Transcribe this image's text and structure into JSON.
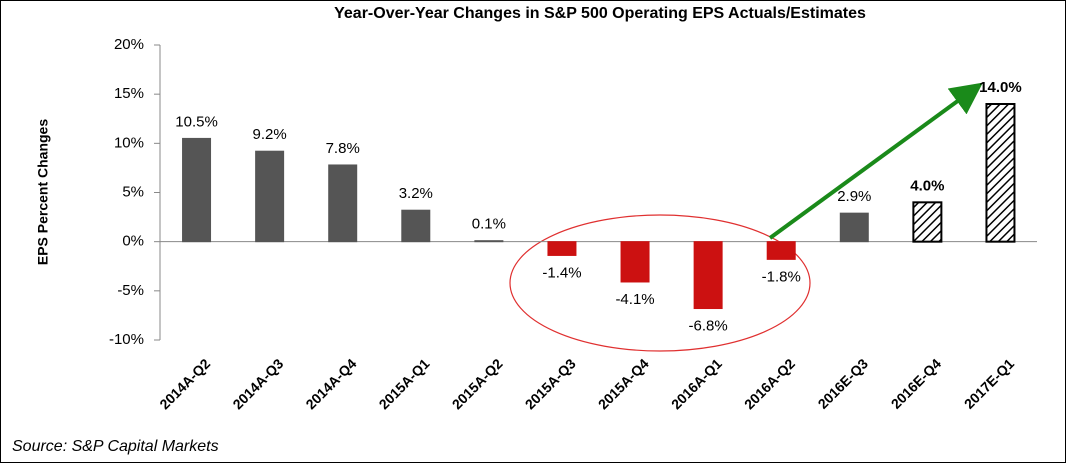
{
  "chart_data": {
    "type": "bar",
    "title": "Year-Over-Year Changes in S&P 500 Operating EPS Actuals/Estimates",
    "y_label": "EPS Percent Changes",
    "source": "Source: S&P Capital Markets",
    "categories": [
      "2014A-Q2",
      "2014A-Q3",
      "2014A-Q4",
      "2015A-Q1",
      "2015A-Q2",
      "2015A-Q3",
      "2015A-Q4",
      "2016A-Q1",
      "2016A-Q2",
      "2016E-Q3",
      "2016E-Q4",
      "2017E-Q1"
    ],
    "values": [
      10.5,
      9.2,
      7.8,
      3.2,
      0.1,
      -1.4,
      -4.1,
      -6.8,
      -1.8,
      2.9,
      4.0,
      14.0
    ],
    "value_labels": [
      "10.5%",
      "9.2%",
      "7.8%",
      "3.2%",
      "0.1%",
      "-1.4%",
      "-4.1%",
      "-6.8%",
      "-1.8%",
      "2.9%",
      "4.0%",
      "14.0%"
    ],
    "colors": [
      "#555555",
      "#555555",
      "#555555",
      "#555555",
      "#555555",
      "#cc1111",
      "#cc1111",
      "#cc1111",
      "#cc1111",
      "#555555",
      "#000000",
      "#000000"
    ],
    "hatched": [
      false,
      false,
      false,
      false,
      false,
      false,
      false,
      false,
      false,
      false,
      true,
      true
    ],
    "ylim": [
      -10,
      20
    ],
    "yticks": [
      {
        "value": -10,
        "label": "-10%"
      },
      {
        "value": -5,
        "label": "-5%"
      },
      {
        "value": 0,
        "label": "0%"
      },
      {
        "value": 5,
        "label": "5%"
      },
      {
        "value": 10,
        "label": "10%"
      },
      {
        "value": 15,
        "label": "15%"
      },
      {
        "value": 20,
        "label": "20%"
      }
    ]
  }
}
